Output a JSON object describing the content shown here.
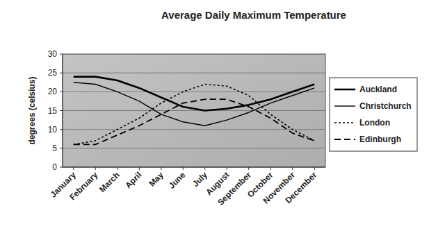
{
  "chart_data": {
    "type": "line",
    "title": "Average Daily Maximum Temperature",
    "y_label": "degrees (celsius)",
    "categories": [
      "January",
      "February",
      "March",
      "April",
      "May",
      "June",
      "July",
      "August",
      "September",
      "October",
      "November",
      "December"
    ],
    "series": [
      {
        "name": "Auckland",
        "color": "#000000",
        "line_style": "solid",
        "values": [
          24,
          24,
          23,
          21,
          18.5,
          16,
          15,
          15.5,
          16.5,
          18,
          20,
          22
        ]
      },
      {
        "name": "Christchurch",
        "color": "#000000",
        "line_style": "solid",
        "values": [
          22.5,
          22,
          20,
          17.5,
          14,
          12,
          11,
          12.5,
          14.5,
          17,
          19,
          21
        ]
      },
      {
        "name": "London",
        "color": "#000000",
        "line_style": "dotted",
        "values": [
          6,
          7,
          10,
          13,
          17,
          20,
          22,
          21.5,
          19,
          14,
          10,
          7
        ]
      },
      {
        "name": "Edinburgh",
        "color": "#000000",
        "line_style": "dashed",
        "values": [
          6,
          6,
          8.5,
          11,
          14,
          17,
          18,
          18,
          16,
          13,
          9,
          7
        ]
      }
    ],
    "ylim": [
      0,
      30
    ],
    "yticks": [
      0,
      5,
      10,
      15,
      20,
      25,
      30
    ],
    "grid": true,
    "legend": "right"
  }
}
